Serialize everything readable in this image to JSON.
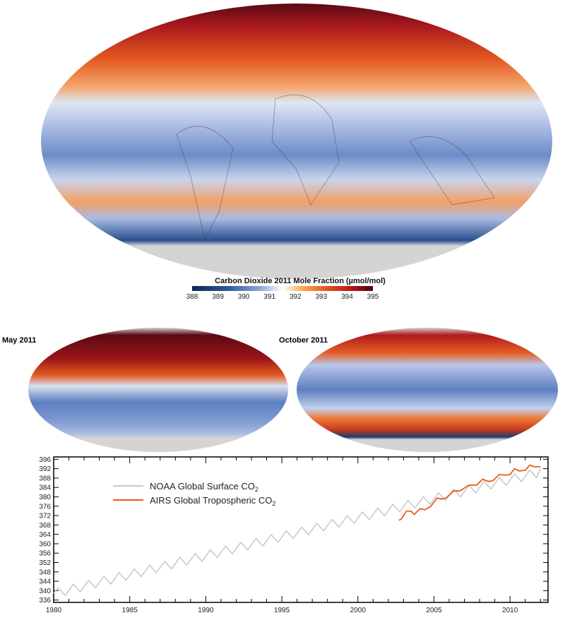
{
  "colorbar": {
    "title": "Carbon Dioxide 2011 Mole Fraction (µmol/mol)",
    "ticks": [
      "388",
      "389",
      "390",
      "391",
      "392",
      "393",
      "394",
      "395"
    ],
    "colors": [
      "#0d2b4e",
      "#2d5a9a",
      "#8fa8d8",
      "#ffffff",
      "#f7a64a",
      "#e2501e",
      "#b5171c",
      "#4a0612"
    ]
  },
  "maps": {
    "main_label": "",
    "may_label": "May 2011",
    "october_label": "October 2011"
  },
  "chart_data": {
    "type": "line",
    "title": "",
    "xlabel": "",
    "ylabel": "",
    "xlim": [
      1980,
      2012.5
    ],
    "ylim": [
      335,
      397
    ],
    "xticks": [
      1980,
      1985,
      1990,
      1995,
      2000,
      2005,
      2010
    ],
    "xtick_labels": [
      "1980",
      "1985",
      "1990",
      "1995",
      "2000",
      "2005",
      "2010"
    ],
    "yticks": [
      336,
      340,
      344,
      348,
      352,
      356,
      360,
      364,
      368,
      372,
      376,
      380,
      384,
      388,
      392,
      396
    ],
    "ytick_labels": [
      "336",
      "340",
      "344",
      "348",
      "352",
      "356",
      "360",
      "364",
      "368",
      "372",
      "376",
      "380",
      "384",
      "388",
      "392",
      "396"
    ],
    "legend_position": "top-left",
    "series": [
      {
        "name": "NOAA Global Surface CO",
        "name_sub": "2",
        "color": "#c8c8c8",
        "peaks": [
          341.2,
          342.8,
          344.4,
          346.1,
          347.7,
          349.3,
          350.9,
          352.5,
          354.2,
          355.8,
          357.4,
          359.0,
          360.6,
          362.3,
          363.9,
          365.5,
          367.1,
          368.7,
          370.4,
          372.0,
          373.6,
          375.2,
          376.8,
          378.5,
          380.1,
          381.7,
          383.3,
          384.9,
          386.6,
          388.2,
          389.8,
          391.4
        ],
        "troughs": [
          337.9,
          339.5,
          341.2,
          342.8,
          344.4,
          346.0,
          347.6,
          349.3,
          350.9,
          352.5,
          354.1,
          355.7,
          357.4,
          359.0,
          360.6,
          362.2,
          363.8,
          365.5,
          367.1,
          368.7,
          370.3,
          371.9,
          373.6,
          375.2,
          376.8,
          378.4,
          380.0,
          381.7,
          383.3,
          384.9,
          386.5,
          388.1
        ],
        "start": [
          1980.0,
          339.0
        ],
        "end": [
          2012.0,
          392.0
        ]
      },
      {
        "name": "AIRS Global Tropospheric CO",
        "name_sub": "2",
        "color": "#f05a1a",
        "x": [
          2002.7,
          2002.85,
          2003.2,
          2003.5,
          2003.7,
          2004.1,
          2004.4,
          2004.8,
          2005.2,
          2005.5,
          2005.8,
          2006.3,
          2006.7,
          2007.3,
          2007.8,
          2008.2,
          2008.6,
          2008.9,
          2009.3,
          2009.7,
          2010.0,
          2010.3,
          2010.6,
          2011.0,
          2011.3,
          2011.6,
          2012.0
        ],
        "y": [
          370.0,
          370.5,
          374.0,
          373.8,
          372.5,
          375.0,
          374.5,
          376.0,
          379.5,
          379.0,
          379.5,
          382.5,
          382.5,
          385.0,
          385.0,
          387.5,
          386.5,
          387.0,
          389.5,
          389.2,
          389.5,
          392.0,
          391.0,
          391.3,
          393.5,
          392.8,
          392.8
        ]
      }
    ]
  }
}
